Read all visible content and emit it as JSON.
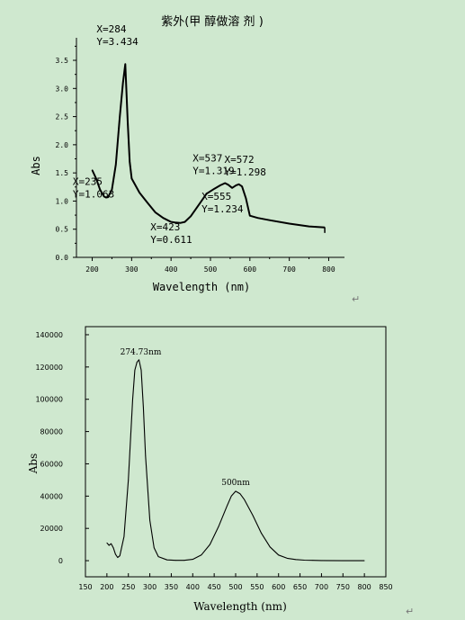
{
  "chart_data": [
    {
      "type": "line",
      "title": "紫外(甲 醇做溶 剂 )",
      "xlabel": "Wavelength (nm)",
      "ylabel": "Abs",
      "xlim": [
        160,
        840
      ],
      "ylim": [
        0,
        3.9
      ],
      "x_ticks": [
        "200",
        "300",
        "400",
        "500",
        "600",
        "700",
        "800"
      ],
      "y_ticks": [
        "0.0",
        "0.5",
        "1.0",
        "1.5",
        "2.0",
        "2.5",
        "3.0",
        "3.5"
      ],
      "series": [
        {
          "x": [
            200,
            210,
            220,
            230,
            235,
            240,
            250,
            260,
            270,
            278,
            284,
            290,
            295,
            300,
            320,
            340,
            360,
            380,
            400,
            410,
            423,
            435,
            450,
            470,
            490,
            510,
            525,
            537,
            545,
            555,
            565,
            572,
            580,
            590,
            600,
            620,
            650,
            700,
            750,
            790
          ],
          "y": [
            1.55,
            1.4,
            1.2,
            1.08,
            1.063,
            1.07,
            1.2,
            1.65,
            2.5,
            3.1,
            3.434,
            2.4,
            1.7,
            1.4,
            1.15,
            0.97,
            0.8,
            0.7,
            0.63,
            0.62,
            0.611,
            0.63,
            0.73,
            0.93,
            1.13,
            1.22,
            1.28,
            1.319,
            1.29,
            1.234,
            1.28,
            1.298,
            1.26,
            1.05,
            0.74,
            0.7,
            0.66,
            0.6,
            0.55,
            0.53
          ]
        }
      ],
      "annotations": [
        {
          "x": 284,
          "y": 3.434,
          "line1": "X=284",
          "line2": "Y=3.434"
        },
        {
          "x": 235,
          "y": 1.063,
          "line1": "X=235",
          "line2": "Y=1.063"
        },
        {
          "x": 423,
          "y": 0.611,
          "line1": "X=423",
          "line2": "Y=0.611"
        },
        {
          "x": 537,
          "y": 1.319,
          "line1": "X=537",
          "line2": "Y=1.319"
        },
        {
          "x": 572,
          "y": 1.298,
          "line1": "X=572",
          "line2": "Y=1.298"
        },
        {
          "x": 555,
          "y": 1.234,
          "line1": "X=555",
          "line2": "Y=1.234"
        }
      ]
    },
    {
      "type": "line",
      "title": "",
      "xlabel": "Wavelength (nm)",
      "ylabel": "Abs",
      "xlim": [
        150,
        850
      ],
      "ylim": [
        -10000,
        145000
      ],
      "x_ticks": [
        "150",
        "200",
        "250",
        "300",
        "350",
        "400",
        "450",
        "500",
        "550",
        "600",
        "650",
        "700",
        "750",
        "800",
        "850"
      ],
      "y_ticks": [
        "0",
        "20000",
        "40000",
        "60000",
        "80000",
        "100000",
        "120000",
        "140000"
      ],
      "series": [
        {
          "x": [
            200,
            205,
            210,
            215,
            220,
            225,
            230,
            240,
            250,
            260,
            265,
            270,
            274.73,
            280,
            285,
            290,
            300,
            310,
            320,
            340,
            360,
            380,
            400,
            420,
            440,
            460,
            480,
            490,
            500,
            510,
            520,
            540,
            560,
            580,
            600,
            620,
            640,
            660,
            680,
            700,
            750,
            800
          ],
          "y": [
            11000,
            9500,
            10500,
            8000,
            4000,
            2000,
            3000,
            15000,
            50000,
            100000,
            118000,
            123000,
            124500,
            118000,
            95000,
            65000,
            25000,
            8000,
            2500,
            500,
            200,
            200,
            800,
            3500,
            10000,
            21000,
            34000,
            40000,
            43000,
            41500,
            38000,
            28000,
            17000,
            8500,
            3500,
            1500,
            700,
            300,
            200,
            100,
            0,
            0
          ]
        }
      ],
      "annotations": [
        {
          "x": 274.73,
          "y": 124500,
          "line1": "274.73nm"
        },
        {
          "x": 500,
          "y": 43000,
          "line1": "500nm"
        }
      ]
    }
  ]
}
